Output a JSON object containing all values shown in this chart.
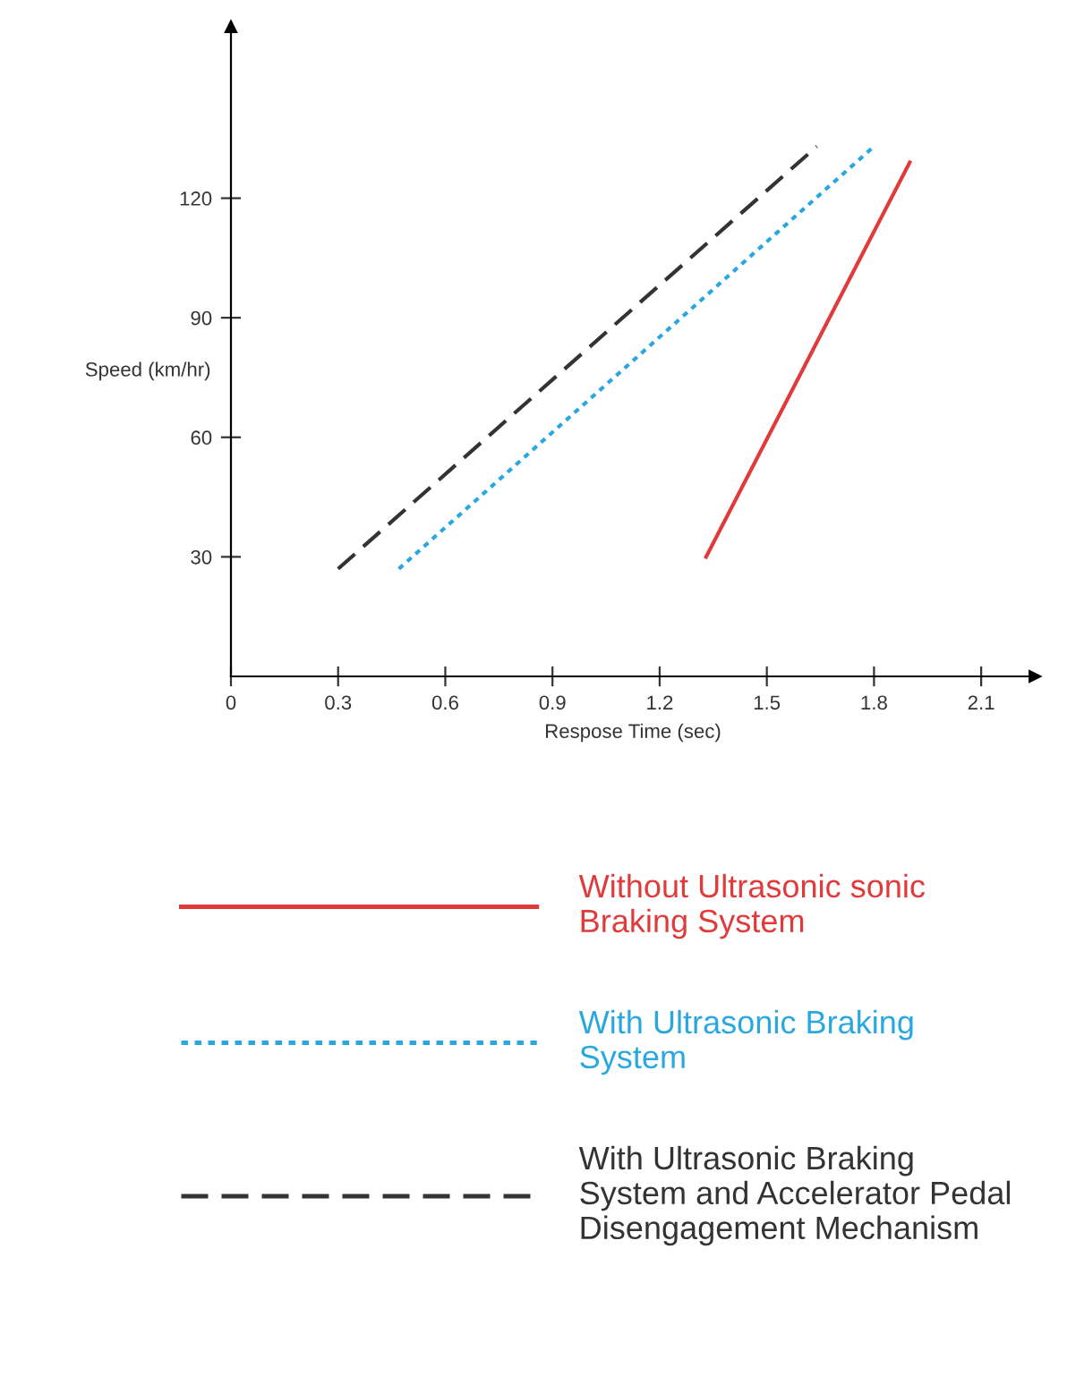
{
  "chart_data": {
    "type": "line",
    "xlabel": "Respose Time (sec)",
    "ylabel": "Speed (km/hr)",
    "xlim": [
      0,
      2.25
    ],
    "ylim": [
      0,
      163
    ],
    "xticks": [
      0,
      0.3,
      0.6,
      0.9,
      1.2,
      1.5,
      1.8,
      2.1
    ],
    "yticks": [
      30,
      60,
      90,
      120
    ],
    "grid": false,
    "legend": "bottom",
    "series": [
      {
        "name": "Without Ultrasonic sonic Braking System",
        "color": "#e03a3a",
        "line_style": "solid",
        "x": [
          1.33,
          1.9
        ],
        "values": [
          30,
          129
        ]
      },
      {
        "name": "With Ultrasonic Braking System",
        "color": "#29a8e0",
        "line_style": "dotted",
        "x": [
          0.47,
          1.8
        ],
        "values": [
          27,
          133
        ]
      },
      {
        "name": "With Ultrasonic Braking System and Accelerator Pedal Disengagement Mechanism",
        "color": "#333333",
        "line_style": "dashed",
        "x": [
          0.3,
          1.64
        ],
        "values": [
          27,
          133
        ]
      }
    ]
  }
}
